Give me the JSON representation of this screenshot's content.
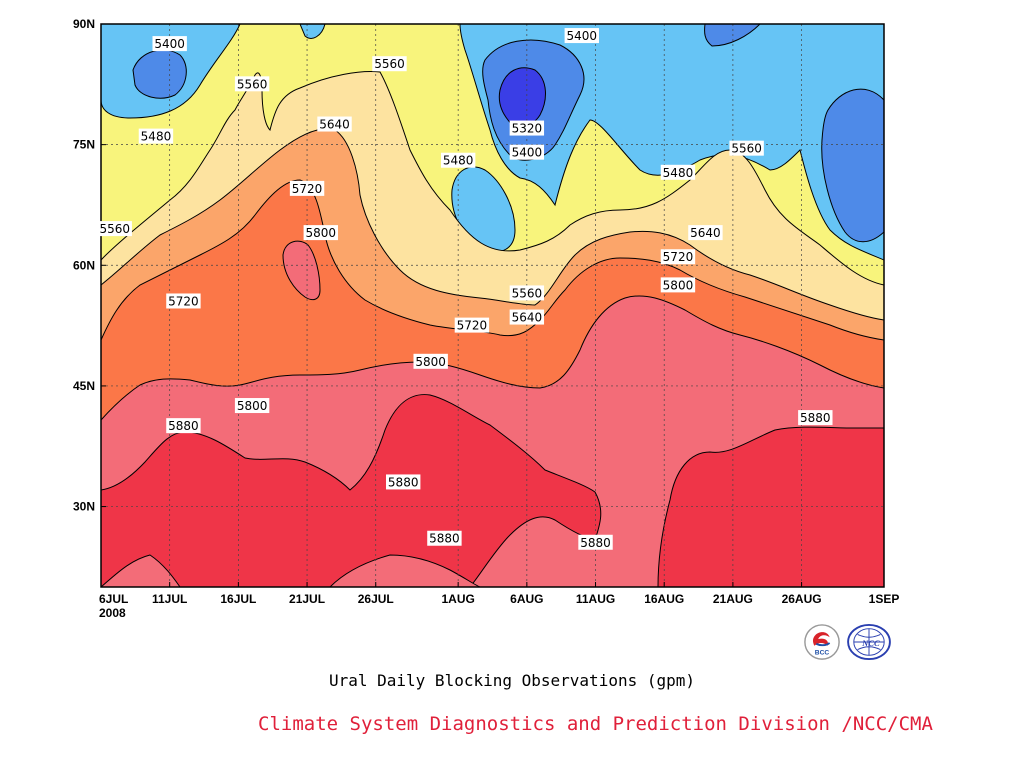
{
  "chart_data": {
    "type": "heatmap",
    "subtype": "filled-contour",
    "title": "Ural Daily Blocking Observations (gpm)",
    "xlabel": "",
    "ylabel": "",
    "x_tick_labels": [
      "6JUL",
      "11JUL",
      "16JUL",
      "21JUL",
      "26JUL",
      "1AUG",
      "6AUG",
      "11AUG",
      "16AUG",
      "21AUG",
      "26AUG",
      "1SEP"
    ],
    "x_year_label": "2008",
    "x_range": [
      "2008-07-06",
      "2008-09-01"
    ],
    "y_tick_labels": [
      "30N",
      "45N",
      "60N",
      "75N",
      "90N"
    ],
    "y_range": [
      20,
      90
    ],
    "grid": "dotted",
    "contour_levels": [
      5320,
      5400,
      5480,
      5560,
      5640,
      5720,
      5800,
      5880
    ],
    "fill_colors": {
      "lt5320": "#3a3ee6",
      "5320-5400": "#4e8ae8",
      "5400-5480": "#66c4f5",
      "5480-5560": "#f8f47c",
      "5560-5640": "#fde3a0",
      "5640-5720": "#fba56a",
      "5720-5800": "#fb7748",
      "5800-5880": "#f36c78",
      "ge5880": "#ef3548"
    },
    "contour_labels": [
      {
        "text": "5400",
        "x": "2008-07-11",
        "y": 87.5
      },
      {
        "text": "5560",
        "x": "2008-07-17",
        "y": 82.5
      },
      {
        "text": "5560",
        "x": "2008-07-27",
        "y": 85.0
      },
      {
        "text": "5480",
        "x": "2008-07-10",
        "y": 76.0
      },
      {
        "text": "5640",
        "x": "2008-07-23",
        "y": 77.5
      },
      {
        "text": "5720",
        "x": "2008-07-21",
        "y": 69.5
      },
      {
        "text": "5560",
        "x": "2008-07-07",
        "y": 64.5
      },
      {
        "text": "5800",
        "x": "2008-07-22",
        "y": 64.0
      },
      {
        "text": "5720",
        "x": "2008-07-12",
        "y": 55.5
      },
      {
        "text": "5800",
        "x": "2008-07-30",
        "y": 48.0
      },
      {
        "text": "5800",
        "x": "2008-07-17",
        "y": 42.5
      },
      {
        "text": "5880",
        "x": "2008-07-12",
        "y": 40.0
      },
      {
        "text": "5880",
        "x": "2008-07-28",
        "y": 33.0
      },
      {
        "text": "5880",
        "x": "2008-07-31",
        "y": 26.0
      },
      {
        "text": "5480",
        "x": "2008-08-01",
        "y": 73.0
      },
      {
        "text": "5400",
        "x": "2008-08-06",
        "y": 74.0
      },
      {
        "text": "5320",
        "x": "2008-08-06",
        "y": 77.0
      },
      {
        "text": "5400",
        "x": "2008-08-10",
        "y": 88.5
      },
      {
        "text": "5560",
        "x": "2008-08-06",
        "y": 56.5
      },
      {
        "text": "5640",
        "x": "2008-08-06",
        "y": 53.5
      },
      {
        "text": "5720",
        "x": "2008-08-02",
        "y": 52.5
      },
      {
        "text": "5880",
        "x": "2008-08-11",
        "y": 25.5
      },
      {
        "text": "5480",
        "x": "2008-08-17",
        "y": 71.5
      },
      {
        "text": "5640",
        "x": "2008-08-19",
        "y": 64.0
      },
      {
        "text": "5720",
        "x": "2008-08-17",
        "y": 61.0
      },
      {
        "text": "5800",
        "x": "2008-08-17",
        "y": 57.5
      },
      {
        "text": "5560",
        "x": "2008-08-22",
        "y": 74.5
      },
      {
        "text": "5880",
        "x": "2008-08-27",
        "y": 41.0
      }
    ]
  },
  "footer": {
    "title": "Ural Daily Blocking Observations (gpm)",
    "credit": "Climate System Diagnostics and Prediction Division /NCC/CMA",
    "credit_color": "#e0203a",
    "logo_bcc": "BCC",
    "logo_ncc": "NCC"
  }
}
